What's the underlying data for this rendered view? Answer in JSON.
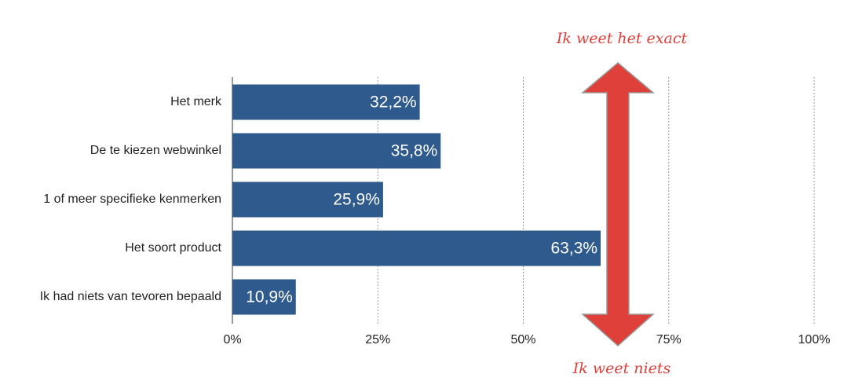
{
  "chart_data": {
    "type": "bar",
    "orientation": "horizontal",
    "categories": [
      "Het merk",
      "De te kiezen webwinkel",
      "1 of meer specifieke kenmerken",
      "Het soort product",
      "Ik had niets van tevoren bepaald"
    ],
    "values": [
      32.2,
      35.8,
      25.9,
      63.3,
      10.9
    ],
    "value_labels": [
      "32,2%",
      "35,8%",
      "25,9%",
      "63,3%",
      "10,9%"
    ],
    "color": "#2f5a8e",
    "xlim": [
      0,
      100
    ],
    "xticks": [
      {
        "value": 0,
        "label": "0%"
      },
      {
        "value": 25,
        "label": "25%"
      },
      {
        "value": 50,
        "label": "50%"
      },
      {
        "value": 75,
        "label": "75%"
      },
      {
        "value": 100,
        "label": "100%"
      }
    ],
    "grid": true,
    "annotations": [
      "Ik weet het exact",
      "Ik weet niets"
    ]
  }
}
